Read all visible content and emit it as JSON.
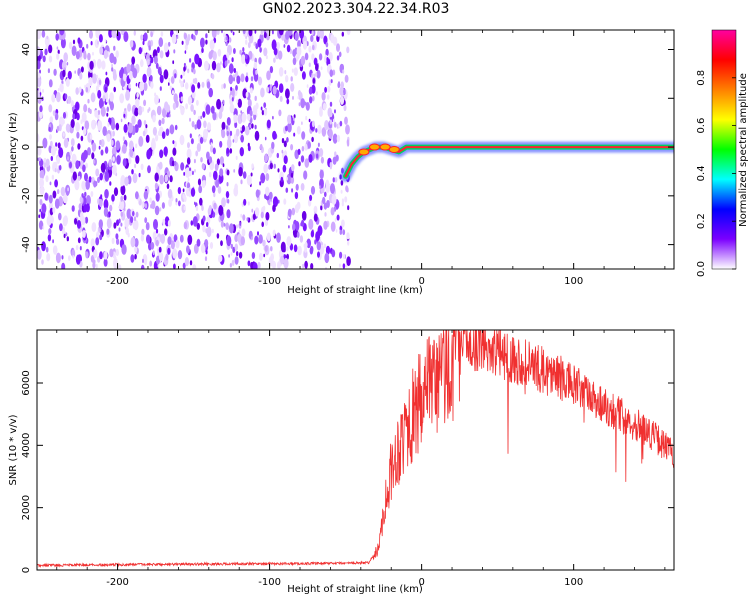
{
  "title": "GN02.2023.304.22.34.R03",
  "colors": {
    "noise": "#6a00e6",
    "snr_line": "#f03030",
    "axis": "#000000"
  },
  "colorbar": {
    "label": "Normalized spectral amplitude",
    "ticks": [
      "0.0",
      "0.2",
      "0.4",
      "0.6",
      "0.8"
    ],
    "tick_values": [
      0.0,
      0.2,
      0.4,
      0.6,
      0.8
    ],
    "range": [
      0,
      1
    ],
    "colors": [
      "#ffffff",
      "#7b00ff",
      "#0000ff",
      "#00ffff",
      "#00ff00",
      "#ffff00",
      "#ff8000",
      "#ff0000",
      "#ff00a0"
    ]
  },
  "chart_data": [
    {
      "type": "heatmap",
      "xlabel": "Height of straight line (km)",
      "ylabel": "Frequency (Hz)",
      "xlim": [
        -253,
        166
      ],
      "ylim": [
        -50,
        48
      ],
      "x_ticks": [
        -200,
        -100,
        0,
        100
      ],
      "x_tick_labels": [
        "-200",
        "-100",
        "0",
        "100"
      ],
      "y_ticks": [
        -40,
        -20,
        0,
        20,
        40
      ],
      "y_tick_labels": [
        "-40",
        "-20",
        "0",
        "20",
        "40"
      ],
      "noise_region_x": [
        -253,
        -48
      ],
      "signal_track": {
        "x": [
          -50,
          -46,
          -42,
          -38,
          -34,
          -30,
          -25,
          -20,
          -15,
          -10,
          -5,
          0,
          40,
          80,
          120,
          166
        ],
        "frequency": [
          -12,
          -7,
          -4,
          -2,
          -1,
          0,
          0,
          -1,
          -2,
          0,
          0,
          0,
          0,
          0,
          0,
          0
        ]
      },
      "grid": false
    },
    {
      "type": "line",
      "xlabel": "Height of straight line (km)",
      "ylabel": "SNR (10 * v/v)",
      "xlim": [
        -253,
        166
      ],
      "ylim": [
        0,
        7700
      ],
      "x_ticks": [
        -200,
        -100,
        0,
        100
      ],
      "x_tick_labels": [
        "-200",
        "-100",
        "0",
        "100"
      ],
      "y_ticks": [
        0,
        2000,
        4000,
        6000
      ],
      "y_tick_labels": [
        "0",
        "2000",
        "4000",
        "6000"
      ],
      "series": [
        {
          "color": "#f03030",
          "x": [
            -253,
            -200,
            -150,
            -100,
            -60,
            -35,
            -28,
            -25,
            -20,
            -15,
            -10,
            -5,
            0,
            10,
            20,
            25,
            30,
            40,
            50,
            60,
            70,
            80,
            90,
            100,
            110,
            120,
            130,
            140,
            150,
            160,
            166
          ],
          "y": [
            150,
            170,
            190,
            200,
            210,
            230,
            700,
            2000,
            3200,
            4000,
            4600,
            5000,
            5400,
            6000,
            6800,
            7100,
            7300,
            7200,
            7000,
            6800,
            6600,
            6400,
            6200,
            5900,
            5600,
            5300,
            5000,
            4700,
            4400,
            4000,
            3700
          ]
        }
      ],
      "grid": false
    }
  ]
}
